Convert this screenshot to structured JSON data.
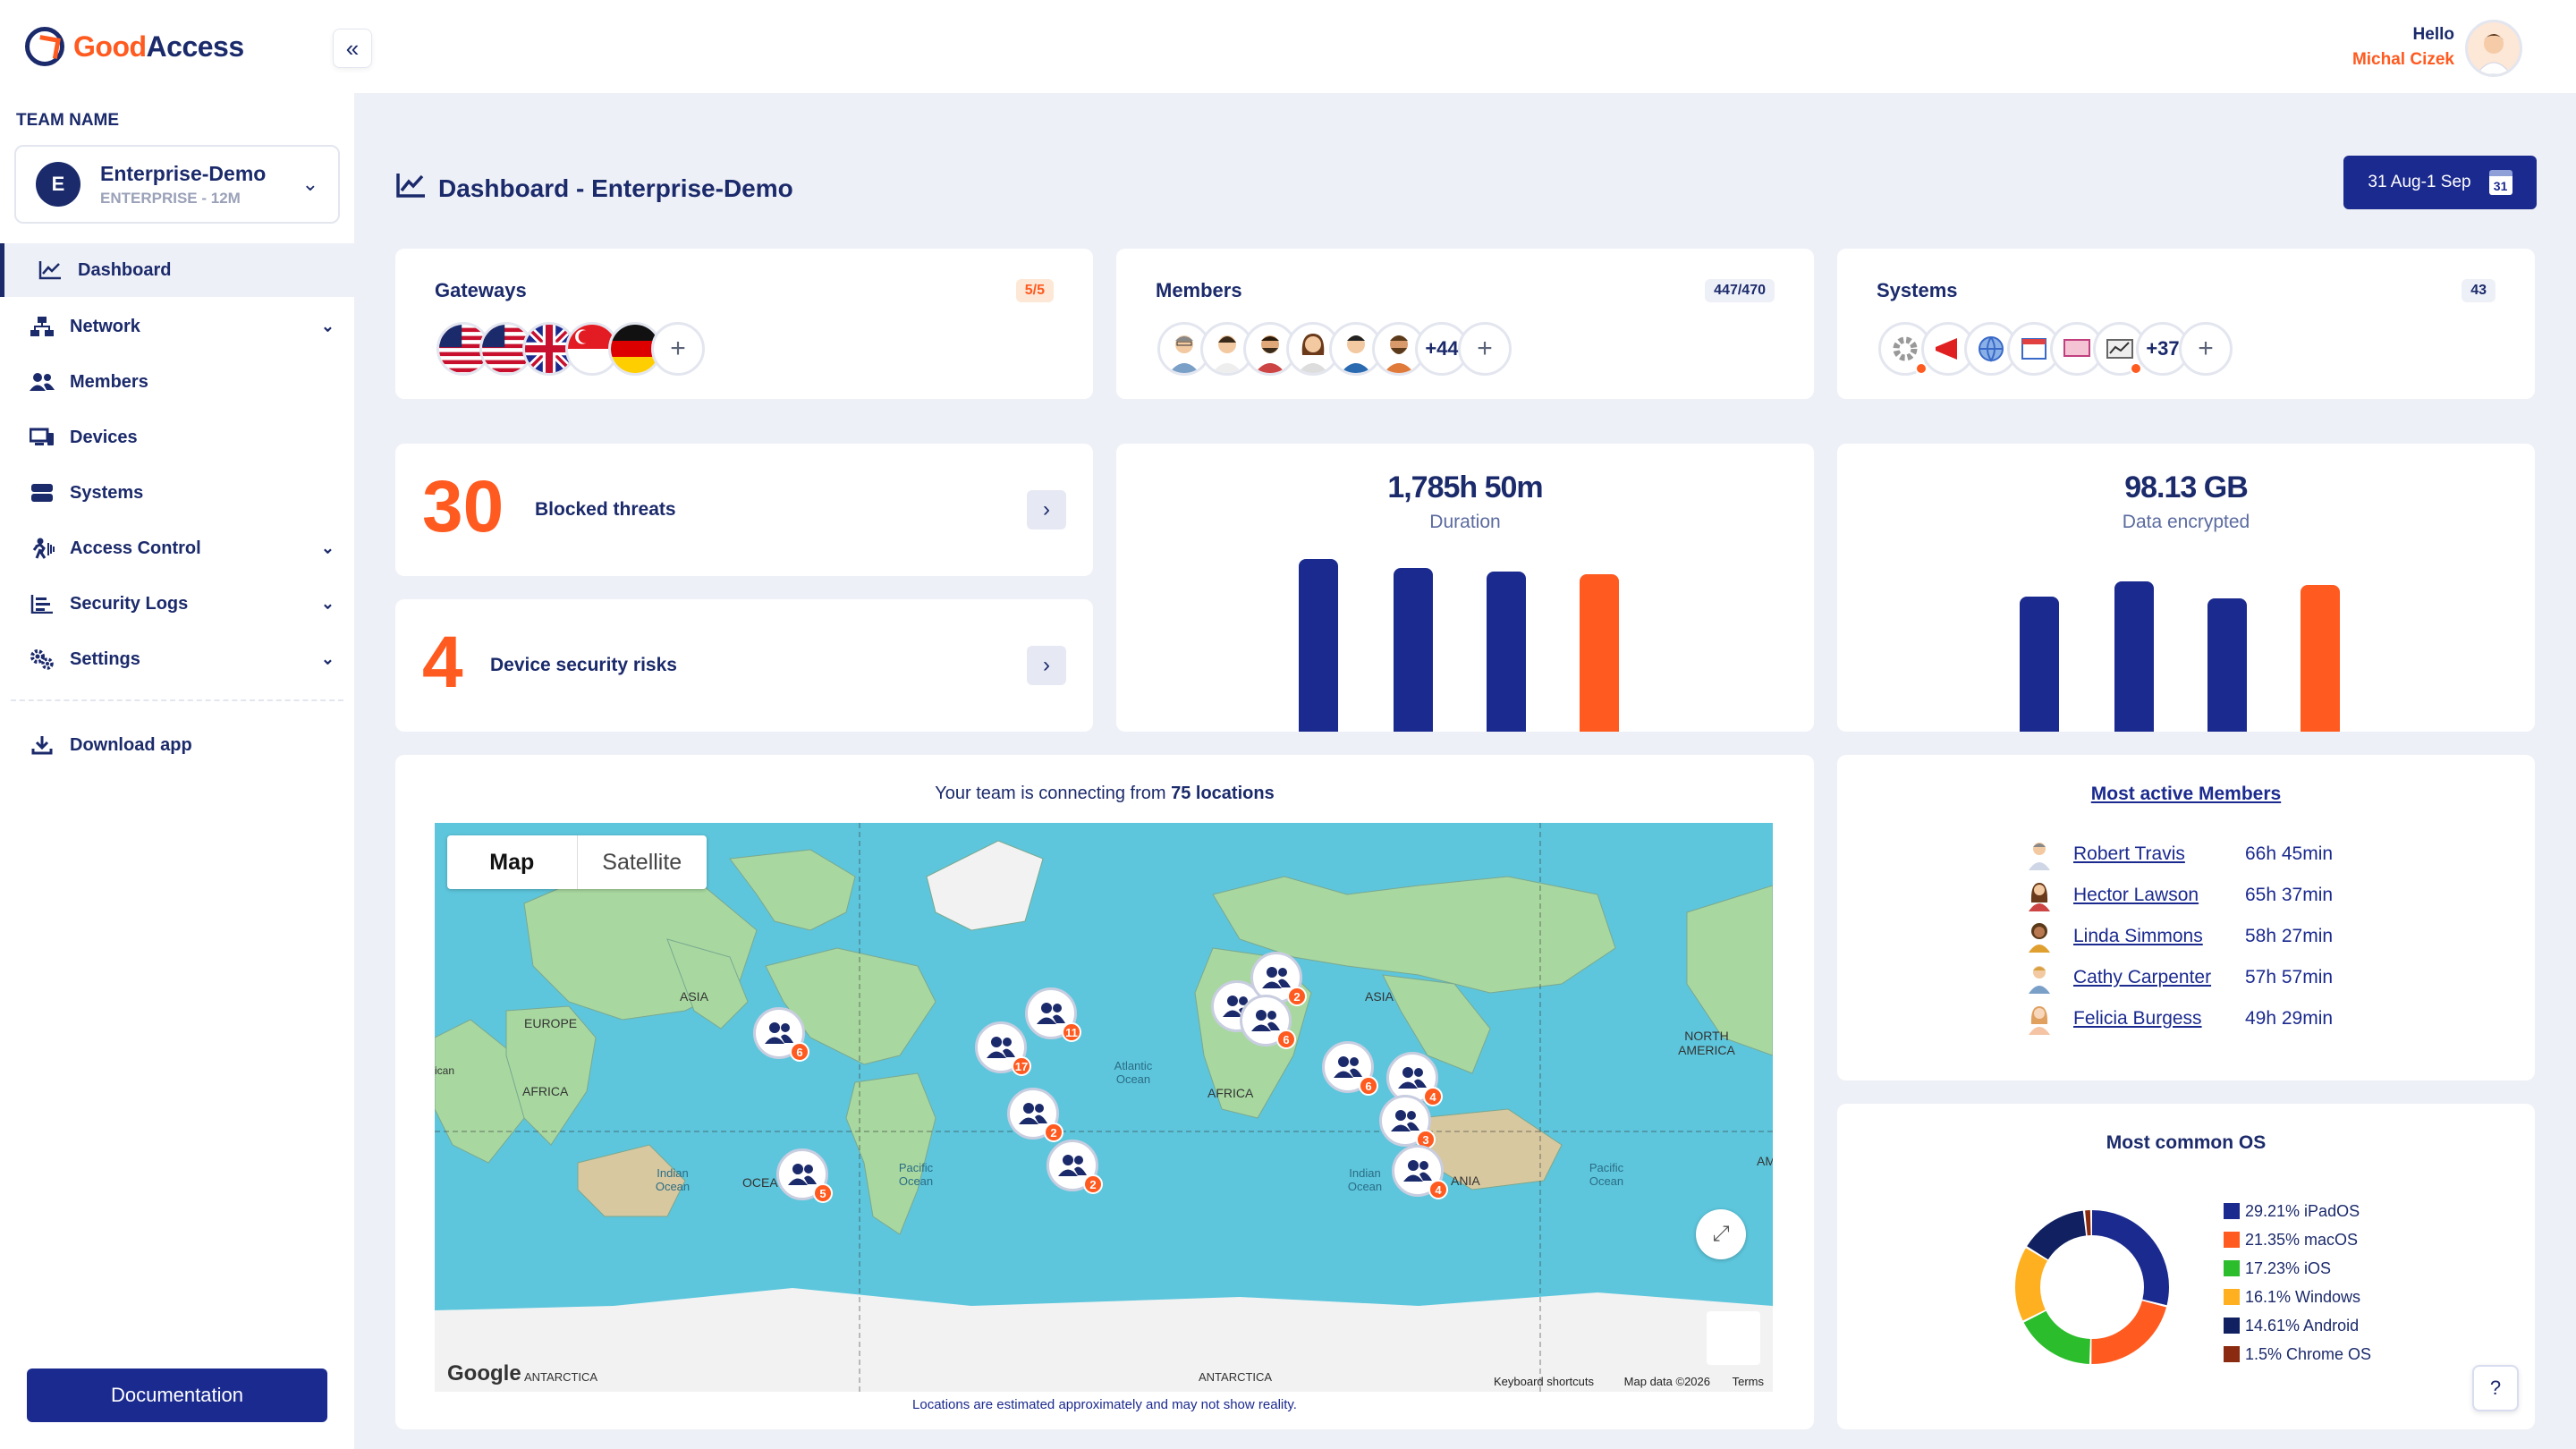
{
  "brand": {
    "good": "Good",
    "access": "Access"
  },
  "sidebar": {
    "team_label": "TEAM NAME",
    "team": {
      "initial": "E",
      "name": "Enterprise-Demo",
      "plan": "ENTERPRISE - 12M"
    },
    "items": [
      {
        "label": "Dashboard",
        "icon": "chart-line-icon",
        "active": true
      },
      {
        "label": "Network",
        "icon": "network-icon",
        "chevron": true
      },
      {
        "label": "Members",
        "icon": "users-icon"
      },
      {
        "label": "Devices",
        "icon": "devices-icon"
      },
      {
        "label": "Systems",
        "icon": "server-icon"
      },
      {
        "label": "Access Control",
        "icon": "access-control-icon",
        "chevron": true
      },
      {
        "label": "Security Logs",
        "icon": "logs-icon",
        "chevron": true
      },
      {
        "label": "Settings",
        "icon": "gears-icon",
        "chevron": true
      }
    ],
    "download": "Download app",
    "documentation": "Documentation"
  },
  "user": {
    "greeting": "Hello",
    "name": "Michal Cizek"
  },
  "header": {
    "title": "Dashboard - Enterprise-Demo",
    "date_range": "31 Aug-1 Sep",
    "calendar_day": "31"
  },
  "gateways": {
    "title": "Gateways",
    "badge": "5/5",
    "flags": [
      "us-flag",
      "us-flag",
      "uk-flag",
      "sg-flag",
      "de-flag"
    ]
  },
  "members": {
    "title": "Members",
    "badge": "447/470",
    "more": "+44"
  },
  "systems": {
    "title": "Systems",
    "badge": "43",
    "more": "+37"
  },
  "threats": {
    "count": "30",
    "label": "Blocked threats"
  },
  "risks": {
    "count": "4",
    "label": "Device security risks"
  },
  "duration": {
    "value": "1,785h 50m",
    "label": "Duration",
    "bar_levels": [
      0.92,
      0.87,
      0.85,
      0.84
    ]
  },
  "data_encrypted": {
    "value": "98.13 GB",
    "label": "Data encrypted",
    "bar_levels": [
      0.72,
      0.8,
      0.71,
      0.78
    ]
  },
  "colors": {
    "navy": "#1b2a8f",
    "orange": "#ff5a1f"
  },
  "map": {
    "title_prefix": "Your team is connecting from ",
    "title_count": "75 locations",
    "tab_map": "Map",
    "tab_satellite": "Satellite",
    "markers": [
      "6",
      "11",
      "17",
      "2",
      "2",
      "2",
      "2",
      "6",
      "4",
      "3",
      "4",
      "5"
    ],
    "labels": {
      "asia1": "ASIA",
      "europe": "EUROPE",
      "africa1": "AFRICA",
      "ocea": "OCEA",
      "asia2": "ASIA",
      "africa2": "AFRICA",
      "north_america": "NORTH AMERICA",
      "atlantic": "Atlantic Ocean",
      "pacific1": "Pacific Ocean",
      "indian1": "Indian Ocean",
      "indian2": "Indian Ocean",
      "pacific2": "Pacific Ocean",
      "antarctica1": "ANTARCTICA",
      "antarctica2": "ANTARCTICA",
      "ania": "ANIA",
      "am": "AM",
      "ican": "ican"
    },
    "google": "Google",
    "shortcuts": "Keyboard shortcuts",
    "map_data": "Map data ©2026",
    "terms": "Terms",
    "disclaimer": "Locations are estimated approximately and may not show reality."
  },
  "most_active": {
    "title": "Most active Members",
    "rows": [
      {
        "name": "Robert Travis",
        "time": "66h 45min"
      },
      {
        "name": "Hector Lawson",
        "time": "65h 37min"
      },
      {
        "name": "Linda Simmons",
        "time": "58h 27min"
      },
      {
        "name": "Cathy Carpenter",
        "time": "57h 57min"
      },
      {
        "name": "Felicia Burgess",
        "time": "49h 29min"
      }
    ]
  },
  "os": {
    "title": "Most common OS",
    "items": [
      {
        "label": "29.21% iPadOS",
        "pct": 29.21,
        "color": "#1b2a8f"
      },
      {
        "label": "21.35% macOS",
        "pct": 21.35,
        "color": "#ff5a1f"
      },
      {
        "label": "17.23% iOS",
        "pct": 17.23,
        "color": "#2bbd2b"
      },
      {
        "label": "16.1% Windows",
        "pct": 16.1,
        "color": "#ffb020"
      },
      {
        "label": "14.61% Android",
        "pct": 14.61,
        "color": "#102060"
      },
      {
        "label": "1.5% Chrome OS",
        "pct": 1.5,
        "color": "#8a2a10"
      }
    ]
  },
  "help": "?"
}
